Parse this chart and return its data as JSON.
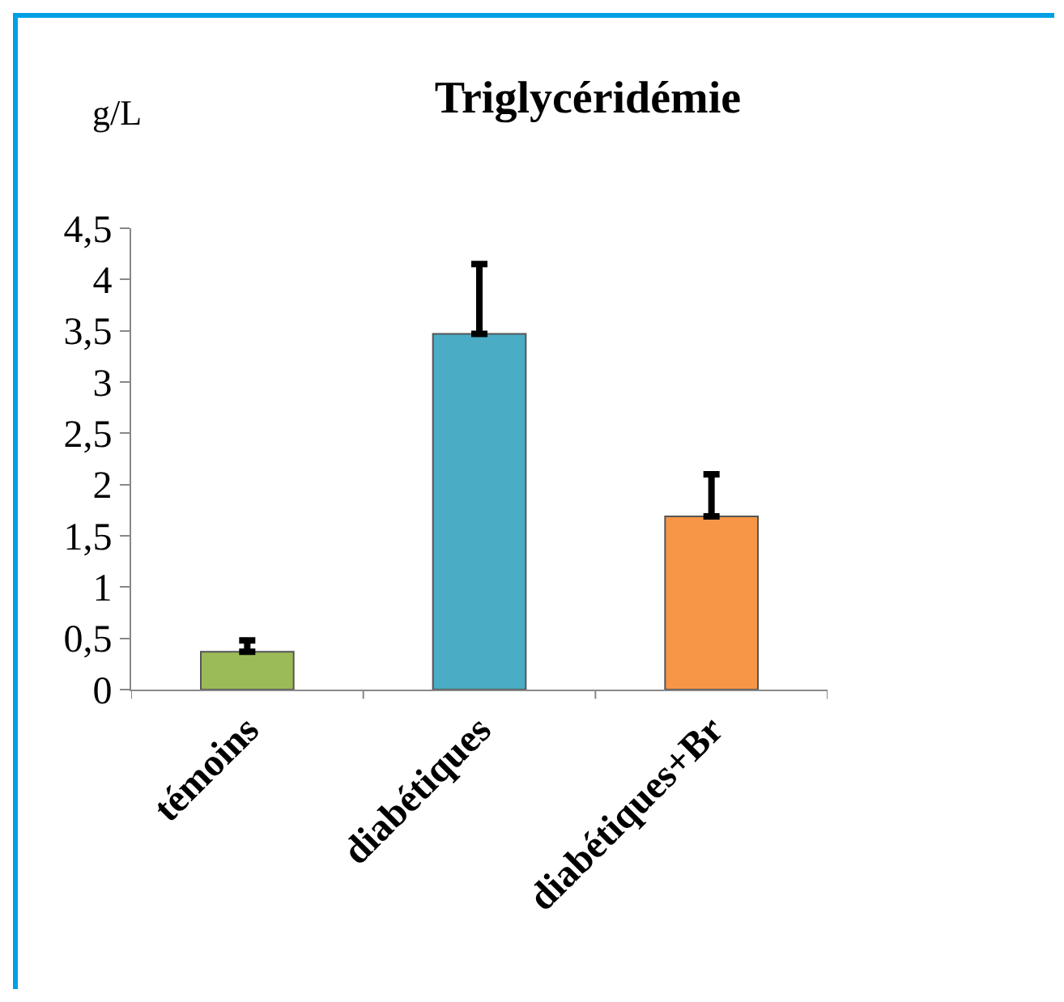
{
  "chart_data": {
    "type": "bar",
    "title": "Triglycéridémie",
    "ylabel": "g/L",
    "categories": [
      "témoins",
      "diabétiques",
      "diabétiques+Br"
    ],
    "values": [
      0.37,
      3.47,
      1.69
    ],
    "colors": [
      "#9bbb59",
      "#4bacc6",
      "#f79646"
    ],
    "errors": [
      [
        0.37,
        0.48
      ],
      [
        3.47,
        4.15
      ],
      [
        1.69,
        2.1
      ]
    ],
    "ylim": [
      0,
      4.5
    ],
    "yticks": [
      0,
      {
        "value": 0.5,
        "label": "0,5"
      },
      1,
      {
        "value": 1.5,
        "label": "1,5"
      },
      2,
      {
        "value": 2.5,
        "label": "2,5"
      },
      3,
      {
        "value": 3.5,
        "label": "3,5"
      },
      4,
      {
        "value": 4.5,
        "label": "4,5"
      }
    ],
    "grid": false
  }
}
